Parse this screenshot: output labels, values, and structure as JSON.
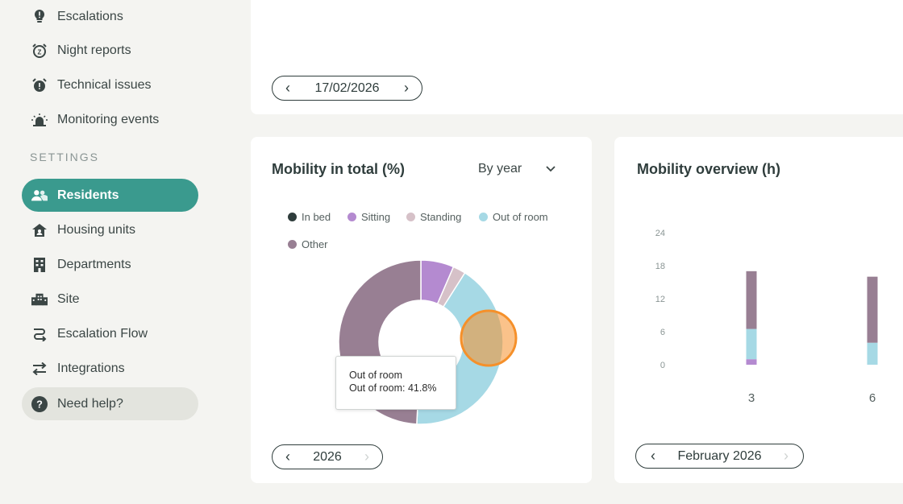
{
  "sidebar": {
    "items": [
      {
        "label": "Escalations",
        "icon": "lightbulb-alert-icon"
      },
      {
        "label": "Night reports",
        "icon": "alarm-clock-icon"
      },
      {
        "label": "Technical issues",
        "icon": "alarm-alert-icon"
      },
      {
        "label": "Monitoring events",
        "icon": "siren-icon"
      }
    ],
    "settings_title": "SETTINGS",
    "settings_items": [
      {
        "label": "Residents",
        "icon": "people-icon",
        "active": true
      },
      {
        "label": "Housing units",
        "icon": "house-icon"
      },
      {
        "label": "Departments",
        "icon": "building-icon"
      },
      {
        "label": "Site",
        "icon": "city-icon"
      },
      {
        "label": "Escalation Flow",
        "icon": "flow-icon"
      },
      {
        "label": "Integrations",
        "icon": "swap-arrows-icon"
      }
    ],
    "help_label": "Need help?"
  },
  "top_card": {
    "date": "17/02/2026"
  },
  "mobility_total": {
    "title": "Mobility in total (%)",
    "period_select": "By year",
    "year": "2026",
    "tooltip": {
      "title": "Out of room",
      "text": "Out of room: 41.8%"
    }
  },
  "mobility_overview": {
    "title": "Mobility overview (h)",
    "month": "February 2026"
  },
  "colors": {
    "in_bed": "#2f3d3c",
    "sitting": "#b48ad0",
    "standing": "#d6c1c8",
    "out_of_room": "#a6d9e5",
    "other": "#987f93",
    "accent": "#3a9a8e",
    "highlight": "#f5902a"
  },
  "chart_data": [
    {
      "type": "pie",
      "title": "Mobility in total (%)",
      "series": [
        {
          "name": "In bed",
          "value": 0
        },
        {
          "name": "Sitting",
          "value": 6.5
        },
        {
          "name": "Standing",
          "value": 2.5
        },
        {
          "name": "Out of room",
          "value": 41.8
        },
        {
          "name": "Other",
          "value": 49.2
        }
      ],
      "legend": "top"
    },
    {
      "type": "bar",
      "title": "Mobility overview (h)",
      "categories": [
        "3",
        "6"
      ],
      "yticks": [
        "24",
        "18",
        "12",
        "6",
        "0"
      ],
      "ylim": [
        0,
        24
      ],
      "series": [
        {
          "name": "Sitting",
          "values": [
            1,
            0
          ]
        },
        {
          "name": "Out of room",
          "values": [
            5.5,
            4
          ]
        },
        {
          "name": "Other",
          "values": [
            10.5,
            12
          ]
        }
      ]
    }
  ]
}
